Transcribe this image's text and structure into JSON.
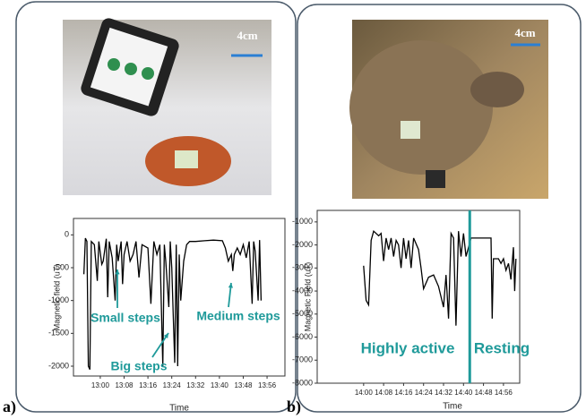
{
  "panel_labels": [
    "a)",
    "b)"
  ],
  "photos": [
    {
      "scale_label": "4cm"
    },
    {
      "scale_label": "4cm"
    }
  ],
  "chart_data": [
    {
      "type": "line",
      "x_label": "Time",
      "y_label": "Magnetic field (uT)",
      "xlim": [
        771,
        842
      ],
      "ylim": [
        -2150,
        250
      ],
      "xticks": [
        {
          "value": 780,
          "label": "13:00"
        },
        {
          "value": 788,
          "label": "13:08"
        },
        {
          "value": 796,
          "label": "13:16"
        },
        {
          "value": 804,
          "label": "13:24"
        },
        {
          "value": 812,
          "label": "13:32"
        },
        {
          "value": 820,
          "label": "13:40"
        },
        {
          "value": 828,
          "label": "13:48"
        },
        {
          "value": 836,
          "label": "13:56"
        }
      ],
      "yticks": [
        0,
        -500,
        -1000,
        -1500,
        -2000
      ],
      "color": "#000000",
      "annotations": [
        "Small steps",
        "Big steps",
        "Medium steps"
      ],
      "x": [
        774.5,
        775,
        775.5,
        776,
        776.5,
        777,
        778,
        779,
        779.5,
        780.5,
        781,
        782,
        782.5,
        783,
        784,
        785,
        785.5,
        786,
        787,
        787.5,
        788,
        789,
        790,
        791,
        792,
        793,
        794,
        796,
        797,
        798,
        799,
        800,
        801,
        801.5,
        802,
        803,
        803.5,
        804,
        805,
        805.5,
        806,
        806.5,
        807,
        808,
        809,
        810,
        812,
        815,
        818,
        821,
        822,
        823,
        824,
        824.5,
        825,
        826,
        827,
        828,
        829,
        830,
        831,
        831.5,
        832,
        833,
        833.5,
        834
      ],
      "values": [
        -600,
        -50,
        -100,
        -2000,
        -2050,
        -100,
        -150,
        -700,
        -100,
        -450,
        -400,
        -60,
        -950,
        -100,
        -350,
        -1000,
        -150,
        -400,
        -100,
        -750,
        -300,
        -100,
        -400,
        -300,
        -100,
        -650,
        -150,
        -200,
        -1050,
        -100,
        -300,
        -150,
        -2000,
        -150,
        -400,
        -1100,
        -100,
        -500,
        -1950,
        -150,
        -2000,
        -300,
        -1000,
        -400,
        -150,
        -100,
        -100,
        -90,
        -80,
        -90,
        -200,
        -400,
        -300,
        -550,
        -300,
        -200,
        -300,
        -150,
        -350,
        -100,
        -1050,
        -100,
        -250,
        -1000,
        -80,
        -1000
      ]
    },
    {
      "type": "line",
      "x_label": "Time",
      "y_label": "Magnetic Field (uT)",
      "xlim": [
        821.4,
        902.5
      ],
      "ylim": [
        -8000,
        -500
      ],
      "xticks": [
        {
          "value": 840,
          "label": "14:00"
        },
        {
          "value": 848,
          "label": "14:08"
        },
        {
          "value": 856,
          "label": "14:16"
        },
        {
          "value": 864,
          "label": "14:24"
        },
        {
          "value": 872,
          "label": "14:32"
        },
        {
          "value": 880,
          "label": "14:40"
        },
        {
          "value": 888,
          "label": "14:48"
        },
        {
          "value": 896,
          "label": "14:56"
        }
      ],
      "yticks": [
        -1000,
        -2000,
        -3000,
        -4000,
        -5000,
        -6000,
        -7000,
        -8000
      ],
      "color": "#000000",
      "divider_x": 882.5,
      "divider_color": "#1f9a9a",
      "annotations": [
        "Highly active",
        "Resting"
      ],
      "x": [
        840,
        841,
        842,
        843,
        844,
        846,
        847,
        848,
        849,
        850,
        851,
        852,
        853,
        854,
        855,
        856,
        857,
        858,
        859,
        860,
        862,
        863,
        864,
        866,
        868,
        870,
        872,
        873,
        874,
        875,
        876,
        877,
        878,
        879,
        880,
        881,
        883,
        886,
        889,
        891,
        891.5,
        892,
        894,
        895,
        896,
        897,
        898,
        899,
        900,
        900.5,
        901
      ],
      "values": [
        -2900,
        -4400,
        -4600,
        -1800,
        -1400,
        -1600,
        -1500,
        -2700,
        -1700,
        -2200,
        -1700,
        -2500,
        -1800,
        -2000,
        -3000,
        -1700,
        -2600,
        -1800,
        -3000,
        -1700,
        -2200,
        -3000,
        -3900,
        -3400,
        -3300,
        -3800,
        -4700,
        -3300,
        -5200,
        -1500,
        -1700,
        -5500,
        -1400,
        -2500,
        -1500,
        -2500,
        -1700,
        -1700,
        -1700,
        -1700,
        -5200,
        -2600,
        -2600,
        -2800,
        -2600,
        -3100,
        -2800,
        -3500,
        -2100,
        -4000,
        -2600
      ]
    }
  ]
}
